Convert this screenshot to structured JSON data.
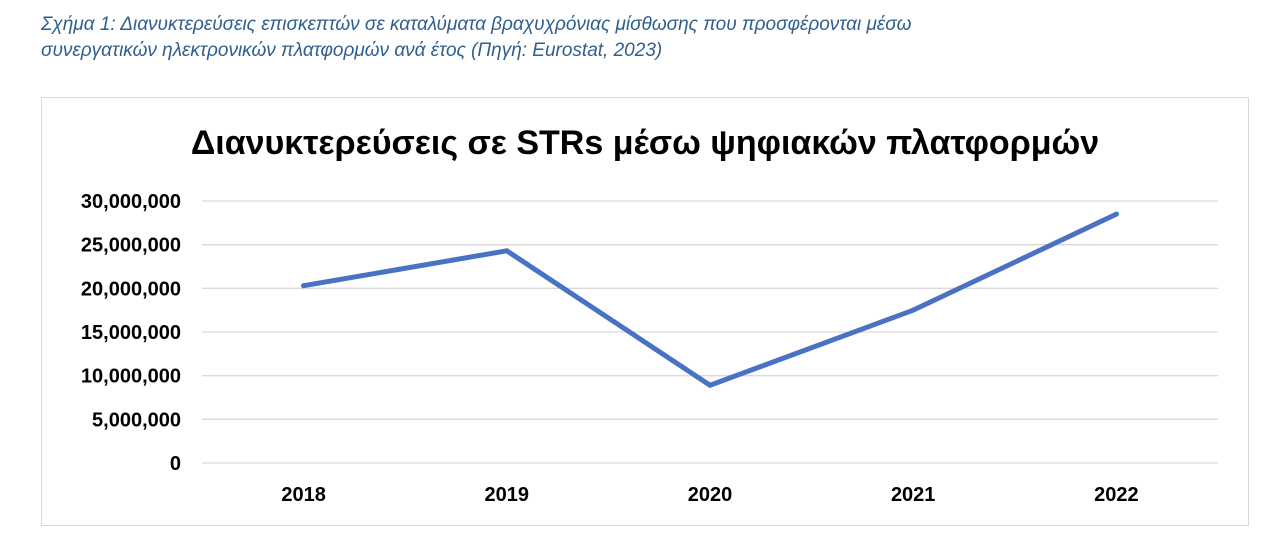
{
  "caption": {
    "line1": "Σχήμα 1: Διανυκτερεύσεις επισκεπτών σε καταλύματα βραχυχρόνιας μίσθωσης που προσφέρονται μέσω",
    "line2": "συνεργατικών ηλεκτρονικών πλατφορμών ανά έτος (Πηγή: Eurostat, 2023)"
  },
  "colors": {
    "line": "#4a72c4",
    "grid": "#d9d9d9",
    "caption": "#2f5f8e"
  },
  "chart_data": {
    "type": "line",
    "title": "Διανυκτερεύσεις σε STRs μέσω ψηφιακών πλατφορμών",
    "xlabel": "",
    "ylabel": "",
    "categories": [
      "2018",
      "2019",
      "2020",
      "2021",
      "2022"
    ],
    "series": [
      {
        "values": [
          20300000,
          24300000,
          8900000,
          17500000,
          28500000
        ]
      }
    ],
    "ylim": [
      0,
      30000000
    ],
    "yticks": [
      0,
      5000000,
      10000000,
      15000000,
      20000000,
      25000000,
      30000000
    ],
    "ytick_labels": [
      "0",
      "5,000,000",
      "10,000,000",
      "15,000,000",
      "20,000,000",
      "25,000,000",
      "30,000,000"
    ],
    "grid": true,
    "legend": "none"
  }
}
